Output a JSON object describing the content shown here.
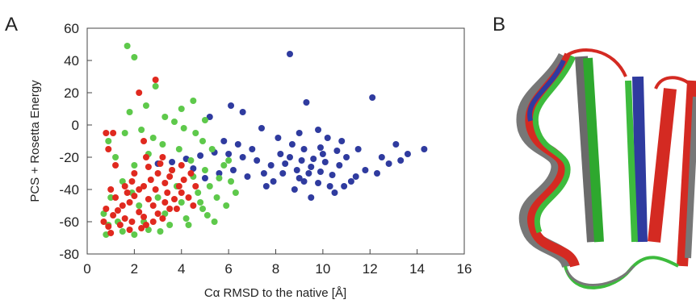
{
  "panel_labels": [
    "A",
    "B"
  ],
  "chart_data": {
    "type": "scatter",
    "x_label": "Cα RMSD to the native [Å]",
    "y_label": "PCS + Rosetta Energy",
    "xlim": [
      0,
      16
    ],
    "ylim": [
      -80,
      60
    ],
    "xticks": [
      0,
      2,
      4,
      6,
      8,
      10,
      12,
      14,
      16
    ],
    "yticks": [
      -80,
      -60,
      -40,
      -20,
      0,
      20,
      40,
      60
    ],
    "series": [
      {
        "color": "#2f3b9f",
        "x": [
          8.6,
          9.3,
          6.1,
          6.6,
          12.1,
          5.2,
          7.4,
          13.1,
          14.3,
          13.6,
          12.5,
          11.8,
          11.2,
          10.5,
          9.5,
          8.8,
          9.0,
          9.8,
          10.2,
          8.7,
          9.2,
          9.9,
          10.6,
          11.0,
          8.6,
          9.1,
          9.6,
          10.1,
          10.7,
          8.9,
          9.4,
          9.9,
          10.4,
          9.2,
          9.8,
          10.3,
          9.0,
          8.3,
          7.8,
          7.2,
          6.6,
          6.0,
          5.4,
          4.8,
          4.2,
          3.6,
          7.5,
          6.8,
          6.2,
          5.6,
          5.0,
          7.9,
          8.2,
          7.0,
          6.4,
          5.8,
          12.8,
          11.5,
          10.8,
          8.1,
          3.0,
          4.5,
          7.6,
          11.4,
          12.3,
          13.3,
          10.0,
          9.5,
          8.4,
          10.9
        ],
        "y": [
          44,
          14,
          12,
          8,
          17,
          5,
          -2,
          -12,
          -15,
          -18,
          -20,
          -28,
          -35,
          -42,
          -45,
          -40,
          -5,
          -3,
          -8,
          -12,
          -15,
          -14,
          -16,
          -20,
          -20,
          -22,
          -21,
          -23,
          -25,
          -28,
          -30,
          -29,
          -31,
          -35,
          -36,
          -38,
          -33,
          -30,
          -25,
          -22,
          -20,
          -18,
          -17,
          -19,
          -21,
          -23,
          -30,
          -32,
          -28,
          -30,
          -33,
          -35,
          -18,
          -15,
          -12,
          -10,
          -24,
          -15,
          -10,
          -8,
          -24,
          -27,
          -38,
          -32,
          -30,
          -22,
          -18,
          -26,
          -24,
          -38
        ]
      },
      {
        "color": "#5ec94b",
        "x": [
          1.7,
          2.0,
          2.9,
          4.5,
          4.0,
          1.8,
          3.3,
          5.0,
          0.9,
          2.3,
          4.6,
          5.3,
          5.8,
          6.1,
          5.5,
          4.9,
          4.2,
          3.5,
          2.6,
          1.5,
          0.8,
          0.7,
          1.0,
          1.5,
          2.0,
          2.6,
          3.2,
          3.9,
          4.4,
          5.0,
          5.2,
          4.7,
          4.0,
          3.3,
          2.4,
          1.3,
          4.5,
          3.8,
          5.6,
          6.3,
          3.0,
          2.2,
          4.8,
          3.6,
          1.2,
          2.8,
          4.1,
          5.9,
          0.9,
          2.0,
          3.1,
          4.3,
          5.1,
          1.6,
          3.7,
          2.5,
          4.9,
          6.0,
          5.4,
          1.9
        ],
        "y": [
          49,
          42,
          24,
          15,
          10,
          8,
          5,
          3,
          -10,
          -3,
          -5,
          -15,
          -25,
          -35,
          -45,
          -52,
          -58,
          -62,
          -65,
          -66,
          -68,
          -55,
          -45,
          -35,
          -25,
          -18,
          -12,
          -15,
          -22,
          -28,
          -38,
          -42,
          -48,
          -55,
          -60,
          -60,
          -32,
          -38,
          -33,
          -42,
          -45,
          -50,
          -48,
          -28,
          -20,
          -8,
          -2,
          -50,
          -62,
          -68,
          -66,
          -62,
          -56,
          -5,
          2,
          12,
          -10,
          -22,
          -60,
          -42
        ]
      },
      {
        "color": "#e0291f",
        "x": [
          2.9,
          2.2,
          1.1,
          0.9,
          2.4,
          3.2,
          4.0,
          4.4,
          4.6,
          4.3,
          3.8,
          3.2,
          2.5,
          1.8,
          1.0,
          0.7,
          0.8,
          1.2,
          1.6,
          2.0,
          2.6,
          3.0,
          3.5,
          3.9,
          3.4,
          2.9,
          2.4,
          2.0,
          1.5,
          1.1,
          1.6,
          2.2,
          2.8,
          3.3,
          3.7,
          2.6,
          1.9,
          2.4,
          3.0,
          0.9,
          1.4,
          4.1,
          3.6,
          2.7,
          2.2,
          1.8,
          1.3,
          3.5,
          4.0,
          2.3,
          1.7,
          0.8,
          1.2,
          3.3,
          2.8,
          4.5,
          1.0,
          1.9,
          3.1,
          2.5
        ],
        "y": [
          28,
          20,
          -5,
          -15,
          -10,
          -20,
          -25,
          -30,
          -38,
          -45,
          -52,
          -58,
          -62,
          -65,
          -67,
          -60,
          -52,
          -45,
          -38,
          -30,
          -26,
          -30,
          -32,
          -38,
          -42,
          -40,
          -38,
          -44,
          -50,
          -56,
          -58,
          -54,
          -50,
          -48,
          -46,
          -46,
          -60,
          -57,
          -55,
          -63,
          -62,
          -34,
          -28,
          -34,
          -40,
          -48,
          -53,
          -52,
          -42,
          -64,
          -42,
          -5,
          -25,
          -36,
          -60,
          -50,
          -40,
          -35,
          -24,
          -20
        ]
      }
    ]
  }
}
